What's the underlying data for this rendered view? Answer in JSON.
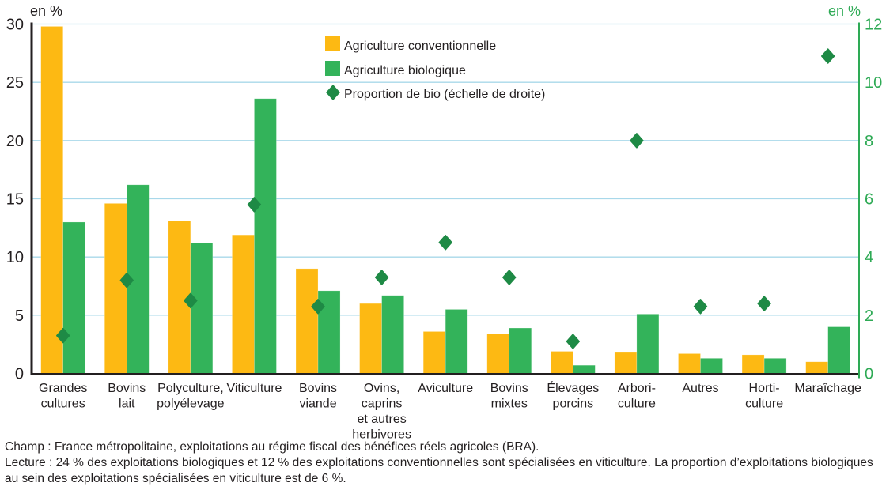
{
  "chart_data": {
    "type": "bar",
    "title": "",
    "xlabel": "",
    "ylabel": "en %",
    "y2label": "en %",
    "ylim": [
      0,
      30
    ],
    "y2lim": [
      0,
      12
    ],
    "yticks": [
      0,
      5,
      10,
      15,
      20,
      25,
      30
    ],
    "y2ticks": [
      0,
      2,
      4,
      6,
      8,
      10,
      12
    ],
    "grid": true,
    "legend_position": "top-center",
    "categories": [
      [
        "Grandes",
        "cultures"
      ],
      [
        "Bovins",
        "lait"
      ],
      [
        "Polyculture,",
        "polyélevage"
      ],
      [
        "Viticulture"
      ],
      [
        "Bovins",
        "viande"
      ],
      [
        "Ovins,",
        "caprins",
        "et autres",
        "herbivores"
      ],
      [
        "Aviculture"
      ],
      [
        "Bovins",
        "mixtes"
      ],
      [
        "Élevages",
        "porcins"
      ],
      [
        "Arbori-",
        "culture"
      ],
      [
        "Autres"
      ],
      [
        "Horti-",
        "culture"
      ],
      [
        "Maraîchage"
      ]
    ],
    "series": [
      {
        "name": "Agriculture conventionnelle",
        "type": "bar",
        "axis": "left",
        "color": "#FDB913",
        "values": [
          29.8,
          14.6,
          13.1,
          11.9,
          9.0,
          6.0,
          3.6,
          3.4,
          1.9,
          1.8,
          1.7,
          1.6,
          1.0
        ]
      },
      {
        "name": "Agriculture biologique",
        "type": "bar",
        "axis": "left",
        "color": "#33B35A",
        "values": [
          13.0,
          16.2,
          11.2,
          23.6,
          7.1,
          6.7,
          5.5,
          3.9,
          0.7,
          5.1,
          1.3,
          1.3,
          4.0
        ]
      },
      {
        "name": "Proportion de bio (échelle de droite)",
        "type": "scatter",
        "marker": "diamond",
        "axis": "right",
        "color": "#1E8A45",
        "values": [
          1.3,
          3.2,
          2.5,
          5.8,
          2.3,
          3.3,
          4.5,
          3.3,
          1.1,
          8.0,
          2.3,
          2.4,
          10.9
        ]
      }
    ]
  },
  "colors": {
    "grid": "#A8D8EA",
    "left_axis": "#231F20",
    "right_axis": "#2EAA55"
  },
  "notes": {
    "champ": "Champ : France métropolitaine, exploitations au régime fiscal des bénéfices réels agricoles (BRA).",
    "lecture": "Lecture : 24 % des exploitations biologiques et 12 % des exploitations conventionnelles sont spécialisées en viticulture. La proportion d’exploitations biologiques au sein des exploitations spécialisées en viticulture est de 6 %."
  }
}
